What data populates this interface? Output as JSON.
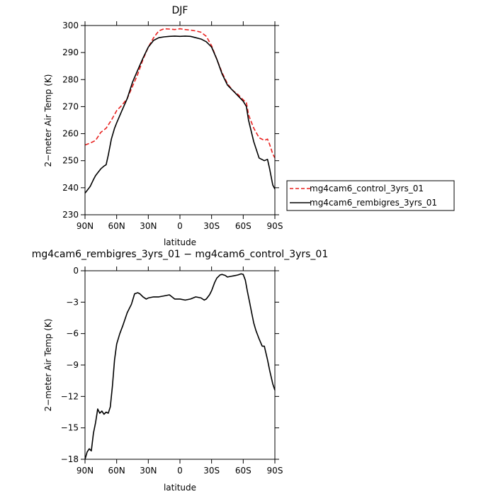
{
  "chart_data": [
    {
      "type": "line",
      "title": "DJF",
      "xlabel": "latitude",
      "ylabel": "2−meter Air Temp (K)",
      "x_ticks": [
        "90N",
        "60N",
        "30N",
        "0",
        "30S",
        "60S",
        "90S"
      ],
      "x_tick_values": [
        90,
        60,
        30,
        0,
        -30,
        -60,
        -90
      ],
      "ylim": [
        230,
        300
      ],
      "y_ticks": [
        230,
        240,
        250,
        260,
        270,
        280,
        290,
        300
      ],
      "xlim": [
        90,
        -90
      ],
      "legend_position": "right",
      "grid": false,
      "series": [
        {
          "name": "mg4cam6_control_3yrs_01",
          "color": "#e8201e",
          "dash": "dashed",
          "x": [
            90,
            85,
            80,
            75,
            70,
            65,
            60,
            55,
            50,
            45,
            40,
            35,
            30,
            25,
            20,
            15,
            10,
            5,
            0,
            -5,
            -10,
            -15,
            -20,
            -25,
            -30,
            -35,
            -40,
            -45,
            -50,
            -55,
            -60,
            -63,
            -65,
            -70,
            -75,
            -80,
            -83,
            -85,
            -88,
            -90
          ],
          "y": [
            255.8,
            256.5,
            257.5,
            260.5,
            262,
            265,
            268.5,
            270.5,
            273,
            277.5,
            282,
            287.5,
            292,
            295.5,
            298,
            298.8,
            298.7,
            298.5,
            298.8,
            298.5,
            298.3,
            298,
            297.5,
            296,
            292.5,
            287.5,
            282.5,
            278.5,
            276,
            274.5,
            272.5,
            271.5,
            267,
            262,
            258.5,
            257.5,
            258,
            256,
            252.5,
            251
          ]
        },
        {
          "name": "mg4cam6_rembigres_3yrs_01",
          "color": "#000000",
          "dash": "solid",
          "x": [
            90,
            87,
            85,
            82,
            80,
            78,
            75,
            72,
            70,
            68,
            65,
            62,
            60,
            55,
            50,
            45,
            40,
            35,
            30,
            25,
            20,
            15,
            10,
            5,
            0,
            -5,
            -10,
            -15,
            -20,
            -25,
            -30,
            -35,
            -40,
            -45,
            -50,
            -55,
            -60,
            -63,
            -65,
            -70,
            -75,
            -80,
            -83,
            -85,
            -88,
            -90
          ],
          "y": [
            238,
            239.5,
            240.5,
            243,
            244.5,
            245.5,
            247,
            248,
            248.5,
            252,
            258,
            262,
            264,
            268.5,
            273,
            279,
            283.5,
            288,
            292,
            294.5,
            295.5,
            295.8,
            296,
            296.1,
            296,
            296.1,
            296,
            295.5,
            295,
            294,
            292,
            287.5,
            282,
            278,
            276,
            274,
            272,
            270,
            265,
            257,
            251,
            250,
            250.5,
            247,
            241,
            239.5
          ]
        }
      ]
    },
    {
      "type": "line",
      "title": "mg4cam6_rembigres_3yrs_01 − mg4cam6_control_3yrs_01",
      "xlabel": "latitude",
      "ylabel": "2−meter Air Temp (K)",
      "x_ticks": [
        "90N",
        "60N",
        "30N",
        "0",
        "30S",
        "60S",
        "90S"
      ],
      "x_tick_values": [
        90,
        60,
        30,
        0,
        -30,
        -60,
        -90
      ],
      "ylim": [
        -18,
        0
      ],
      "y_ticks": [
        -18,
        -15,
        -12,
        -9,
        -6,
        -3,
        0
      ],
      "y_tick_labels": [
        "−18",
        "−15",
        "−12",
        "−9",
        "−6",
        "−3",
        "0"
      ],
      "xlim": [
        90,
        -90
      ],
      "grid": false,
      "series": [
        {
          "color": "#000000",
          "dash": "solid",
          "x": [
            90,
            88,
            86,
            84,
            82,
            80,
            78,
            76,
            74,
            72,
            70,
            68,
            66,
            64,
            62,
            60,
            57,
            54,
            50,
            46,
            43,
            40,
            38,
            35,
            32,
            30,
            25,
            20,
            15,
            10,
            5,
            0,
            -5,
            -10,
            -15,
            -20,
            -23,
            -25,
            -28,
            -30,
            -33,
            -35,
            -38,
            -40,
            -43,
            -45,
            -50,
            -53,
            -55,
            -58,
            -60,
            -62,
            -64,
            -66,
            -68,
            -70,
            -72,
            -75,
            -78,
            -80,
            -83,
            -85,
            -88,
            -90
          ],
          "y": [
            -18,
            -17.3,
            -17,
            -17.2,
            -15.5,
            -14.5,
            -13.2,
            -13.6,
            -13.4,
            -13.7,
            -13.5,
            -13.6,
            -13,
            -11,
            -8.5,
            -7,
            -6,
            -5.2,
            -4,
            -3.2,
            -2.2,
            -2.1,
            -2.2,
            -2.5,
            -2.7,
            -2.6,
            -2.5,
            -2.5,
            -2.4,
            -2.3,
            -2.7,
            -2.7,
            -2.8,
            -2.7,
            -2.5,
            -2.6,
            -2.8,
            -2.7,
            -2.3,
            -1.9,
            -1.1,
            -0.7,
            -0.4,
            -0.35,
            -0.45,
            -0.6,
            -0.5,
            -0.45,
            -0.4,
            -0.3,
            -0.35,
            -0.9,
            -2,
            -3,
            -4,
            -5,
            -5.7,
            -6.5,
            -7.2,
            -7.2,
            -8.5,
            -9.5,
            -10.8,
            -11.4
          ]
        }
      ]
    }
  ]
}
